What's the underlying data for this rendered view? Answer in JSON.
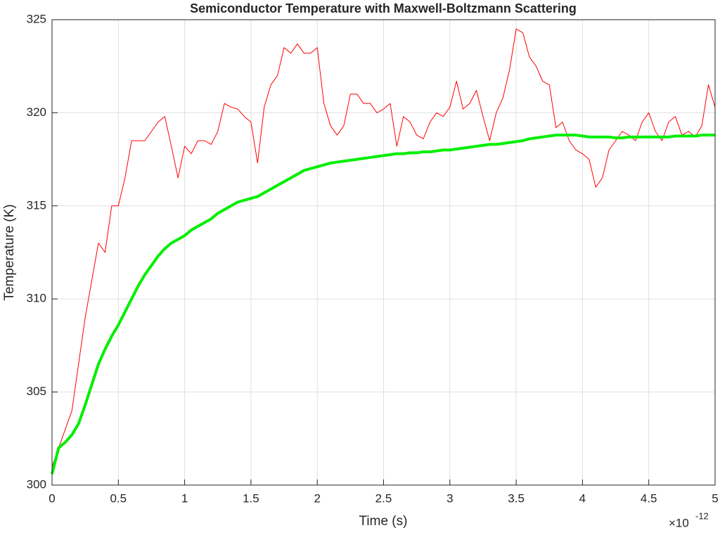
{
  "chart_data": {
    "type": "line",
    "title": "Semiconductor Temperature with Maxwell-Boltzmann Scattering",
    "x_label": "Time (s)",
    "y_label": "Temperature (K)",
    "x_multiplier": "×10",
    "x_exponent": "-12",
    "x": [
      0,
      0.05,
      0.1,
      0.15,
      0.2,
      0.25,
      0.3,
      0.35,
      0.4,
      0.45,
      0.5,
      0.55,
      0.6,
      0.65,
      0.7,
      0.75,
      0.8,
      0.85,
      0.9,
      0.95,
      1,
      1.05,
      1.1,
      1.15,
      1.2,
      1.25,
      1.3,
      1.35,
      1.4,
      1.45,
      1.5,
      1.55,
      1.6,
      1.65,
      1.7,
      1.75,
      1.8,
      1.85,
      1.9,
      1.95,
      2,
      2.05,
      2.1,
      2.15,
      2.2,
      2.25,
      2.3,
      2.35,
      2.4,
      2.45,
      2.5,
      2.55,
      2.6,
      2.65,
      2.7,
      2.75,
      2.8,
      2.85,
      2.9,
      2.95,
      3,
      3.05,
      3.1,
      3.15,
      3.2,
      3.25,
      3.3,
      3.35,
      3.4,
      3.45,
      3.5,
      3.55,
      3.6,
      3.65,
      3.7,
      3.75,
      3.8,
      3.85,
      3.9,
      3.95,
      4,
      4.05,
      4.1,
      4.15,
      4.2,
      4.25,
      4.3,
      4.35,
      4.4,
      4.45,
      4.5,
      4.55,
      4.6,
      4.65,
      4.7,
      4.75,
      4.8,
      4.85,
      4.9,
      4.95,
      5
    ],
    "series": [
      {
        "color": "#ff0000",
        "width": 1,
        "values": [
          301,
          302,
          303,
          304,
          306.5,
          309,
          311,
          313,
          312.5,
          315,
          315,
          316.5,
          318.5,
          318.5,
          318.5,
          319,
          319.5,
          319.8,
          318.2,
          316.5,
          318.2,
          317.8,
          318.5,
          318.5,
          318.3,
          319,
          320.5,
          320.3,
          320.2,
          319.8,
          319.5,
          317.3,
          320.3,
          321.5,
          322,
          323.5,
          323.2,
          323.7,
          323.2,
          323.2,
          323.5,
          320.5,
          319.3,
          318.8,
          319.3,
          321,
          321,
          320.5,
          320.5,
          320,
          320.2,
          320.5,
          318.2,
          319.8,
          319.5,
          318.8,
          318.6,
          319.5,
          320,
          319.8,
          320.3,
          321.7,
          320.2,
          320.5,
          321.2,
          319.8,
          318.5,
          320,
          320.8,
          322.3,
          324.5,
          324.3,
          323,
          322.5,
          321.7,
          321.5,
          319.2,
          319.5,
          318.5,
          318,
          317.8,
          317.5,
          316,
          316.5,
          318,
          318.5,
          319,
          318.8,
          318.5,
          319.5,
          320,
          319,
          318.5,
          319.5,
          319.8,
          318.8,
          319,
          318.7,
          319.3,
          321.5,
          320.3
        ]
      },
      {
        "color": "#00ee00",
        "width": 4,
        "values": [
          300.6,
          302,
          302.3,
          302.7,
          303.3,
          304.3,
          305.4,
          306.5,
          307.3,
          308,
          308.6,
          309.3,
          310,
          310.7,
          311.3,
          311.8,
          312.3,
          312.7,
          313,
          313.2,
          313.4,
          313.7,
          313.9,
          314.1,
          314.3,
          314.6,
          314.8,
          315,
          315.2,
          315.3,
          315.4,
          315.5,
          315.7,
          315.9,
          316.1,
          316.3,
          316.5,
          316.7,
          316.9,
          317,
          317.1,
          317.2,
          317.3,
          317.35,
          317.4,
          317.45,
          317.5,
          317.55,
          317.6,
          317.65,
          317.7,
          317.75,
          317.8,
          317.8,
          317.85,
          317.85,
          317.9,
          317.9,
          317.95,
          318,
          318,
          318.05,
          318.1,
          318.15,
          318.2,
          318.25,
          318.3,
          318.3,
          318.35,
          318.4,
          318.45,
          318.5,
          318.6,
          318.65,
          318.7,
          318.75,
          318.8,
          318.8,
          318.8,
          318.8,
          318.75,
          318.7,
          318.7,
          318.7,
          318.7,
          318.65,
          318.65,
          318.7,
          318.7,
          318.7,
          318.7,
          318.7,
          318.7,
          318.7,
          318.75,
          318.75,
          318.75,
          318.75,
          318.8,
          318.8,
          318.8
        ]
      }
    ],
    "xlim": [
      0,
      5
    ],
    "xticks": [
      0,
      0.5,
      1,
      1.5,
      2,
      2.5,
      3,
      3.5,
      4,
      4.5,
      5
    ],
    "ylim": [
      300,
      325
    ],
    "yticks": [
      300,
      305,
      310,
      315,
      320,
      325
    ],
    "grid": true
  }
}
